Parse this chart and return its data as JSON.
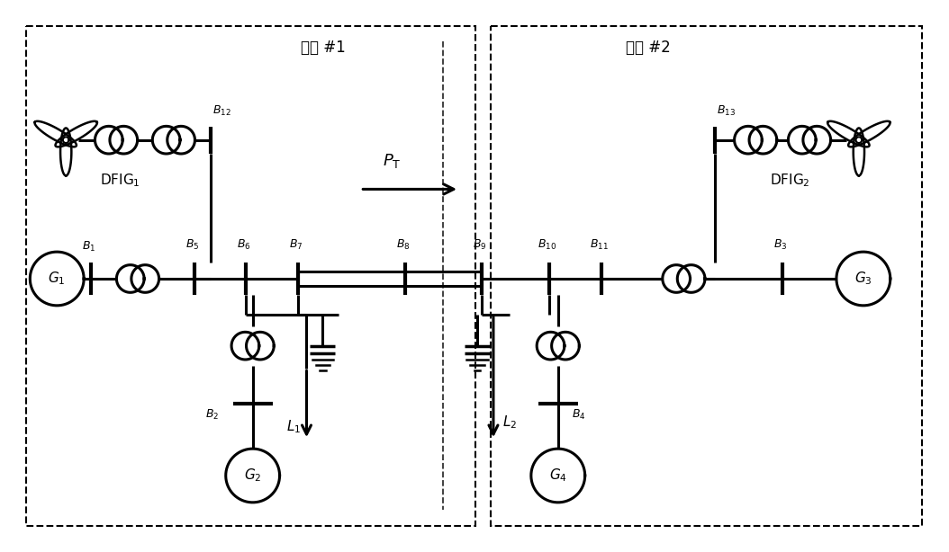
{
  "fig_width": 10.54,
  "fig_height": 6.14,
  "bg_color": "#ffffff",
  "region1_label": "区域 #1",
  "region2_label": "区域 #2"
}
